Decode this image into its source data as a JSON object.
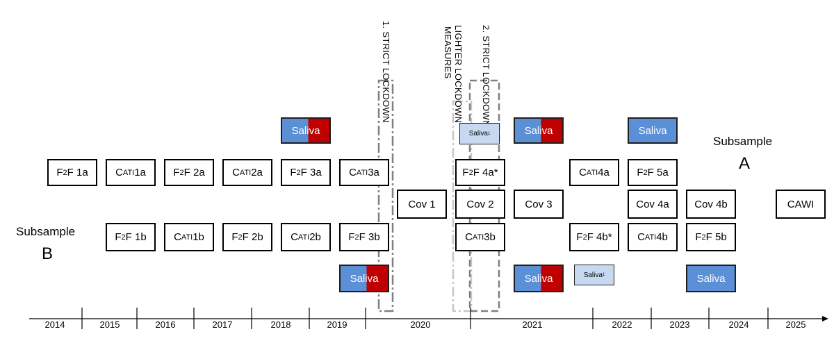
{
  "subsamples": {
    "a": {
      "label": "Subsample",
      "letter": "A"
    },
    "b": {
      "label": "Subsample",
      "letter": "B"
    }
  },
  "lockdowns": {
    "first": "1. STRICT LOCKDOWN",
    "lighter_line1": "LIGHTER LOCKDOWN",
    "lighter_line2": "MEASURES",
    "second": "2. STRICT LOCKDOWN"
  },
  "years": [
    "2014",
    "2015",
    "2016",
    "2017",
    "2018",
    "2019",
    "2020",
    "2021",
    "2022",
    "2023",
    "2024",
    "2025"
  ],
  "waves_a": [
    {
      "name": "wave-f2f-1a",
      "prefix": "F",
      "small": "2",
      "suffix": "F 1a"
    },
    {
      "name": "wave-cati-1a",
      "prefix": "C",
      "small": "ATI",
      "suffix": " 1a"
    },
    {
      "name": "wave-f2f-2a",
      "prefix": "F",
      "small": "2",
      "suffix": "F 2a"
    },
    {
      "name": "wave-cati-2a",
      "prefix": "C",
      "small": "ATI",
      "suffix": " 2a"
    },
    {
      "name": "wave-f2f-3a",
      "prefix": "F",
      "small": "2",
      "suffix": "F 3a"
    },
    {
      "name": "wave-cati-3a",
      "prefix": "C",
      "small": "ATI",
      "suffix": " 3a"
    },
    {
      "name": "wave-f2f-4a",
      "prefix": "F",
      "small": "2",
      "suffix": "F 4a*"
    },
    {
      "name": "wave-cati-4a",
      "prefix": "C",
      "small": "ATI",
      "suffix": " 4a"
    },
    {
      "name": "wave-f2f-5a",
      "prefix": "F",
      "small": "2",
      "suffix": "F 5a"
    }
  ],
  "waves_cov": [
    {
      "name": "wave-cov-1",
      "text": "Cov 1"
    },
    {
      "name": "wave-cov-2",
      "text": "Cov 2"
    },
    {
      "name": "wave-cov-3",
      "text": "Cov 3"
    },
    {
      "name": "wave-cov-4a",
      "text": "Cov 4a"
    },
    {
      "name": "wave-cov-4b",
      "text": "Cov 4b"
    },
    {
      "name": "wave-cawi",
      "text": "CAWI"
    }
  ],
  "waves_b": [
    {
      "name": "wave-f2f-1b",
      "prefix": "F",
      "small": "2",
      "suffix": "F 1b"
    },
    {
      "name": "wave-cati-1b",
      "prefix": "C",
      "small": "ATI",
      "suffix": " 1b"
    },
    {
      "name": "wave-f2f-2b",
      "prefix": "F",
      "small": "2",
      "suffix": "F 2b"
    },
    {
      "name": "wave-cati-2b",
      "prefix": "C",
      "small": "ATI",
      "suffix": " 2b"
    },
    {
      "name": "wave-f2f-3b",
      "prefix": "F",
      "small": "2",
      "suffix": "F 3b"
    },
    {
      "name": "wave-cati-3b",
      "prefix": "C",
      "small": "ATI",
      "suffix": " 3b"
    },
    {
      "name": "wave-f2f-4b",
      "prefix": "F",
      "small": "2",
      "suffix": "F 4b*"
    },
    {
      "name": "wave-cati-4b",
      "prefix": "C",
      "small": "ATI",
      "suffix": " 4b"
    },
    {
      "name": "wave-f2f-5b",
      "prefix": "F",
      "small": "2",
      "suffix": "F 5b"
    }
  ],
  "saliva": {
    "label": "Saliva",
    "small_label": "Saliva",
    "small_sup": "1"
  },
  "colors": {
    "saliva_blue": "#5b8fd6",
    "saliva_red": "#c00000",
    "saliva_light": "#c6d9f1"
  }
}
